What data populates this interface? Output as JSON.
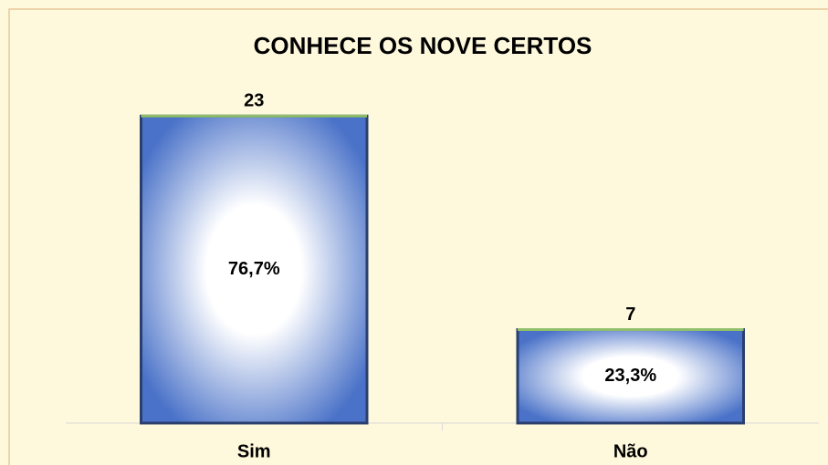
{
  "chart_data": {
    "type": "bar",
    "title": "CONHECE OS NOVE CERTOS",
    "categories": [
      "Sim",
      "Não"
    ],
    "values": [
      23,
      7
    ],
    "color": "#4a72c8",
    "percent": {
      "values": [
        76.7,
        23.3
      ],
      "value_labels": [
        "76,7%",
        "23,3%"
      ]
    },
    "ylim": [
      0,
      25
    ]
  }
}
